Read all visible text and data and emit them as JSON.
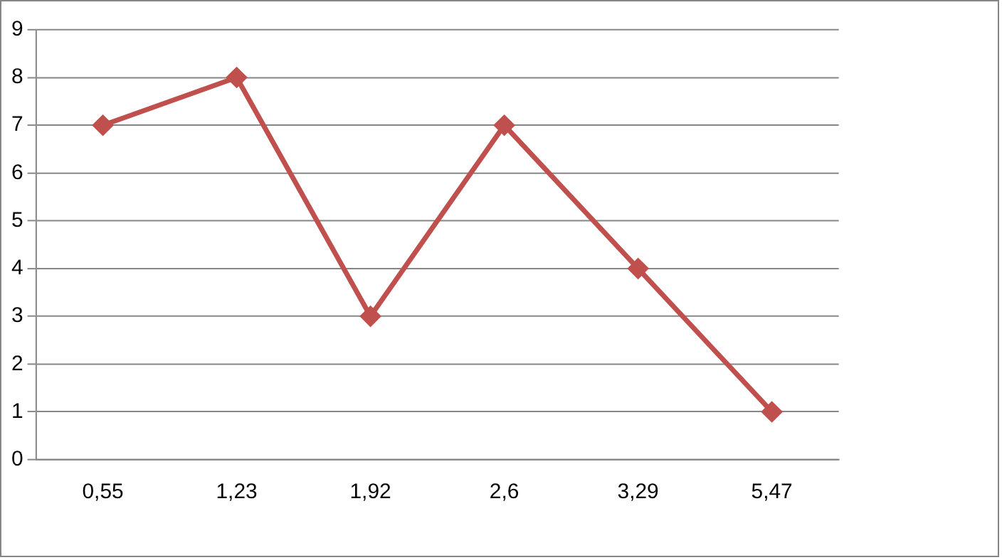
{
  "chart_data": {
    "type": "line",
    "categories": [
      "0,55",
      "1,23",
      "1,92",
      "2,6",
      "3,29",
      "5,47"
    ],
    "values": [
      7,
      8,
      3,
      7,
      4,
      1
    ],
    "color": "#c0504d",
    "ylim": [
      0,
      9
    ],
    "yticks": [
      0,
      1,
      2,
      3,
      4,
      5,
      6,
      7,
      8,
      9
    ],
    "grid": "y",
    "marker": "diamond",
    "line_style": "solid",
    "legend": false
  }
}
